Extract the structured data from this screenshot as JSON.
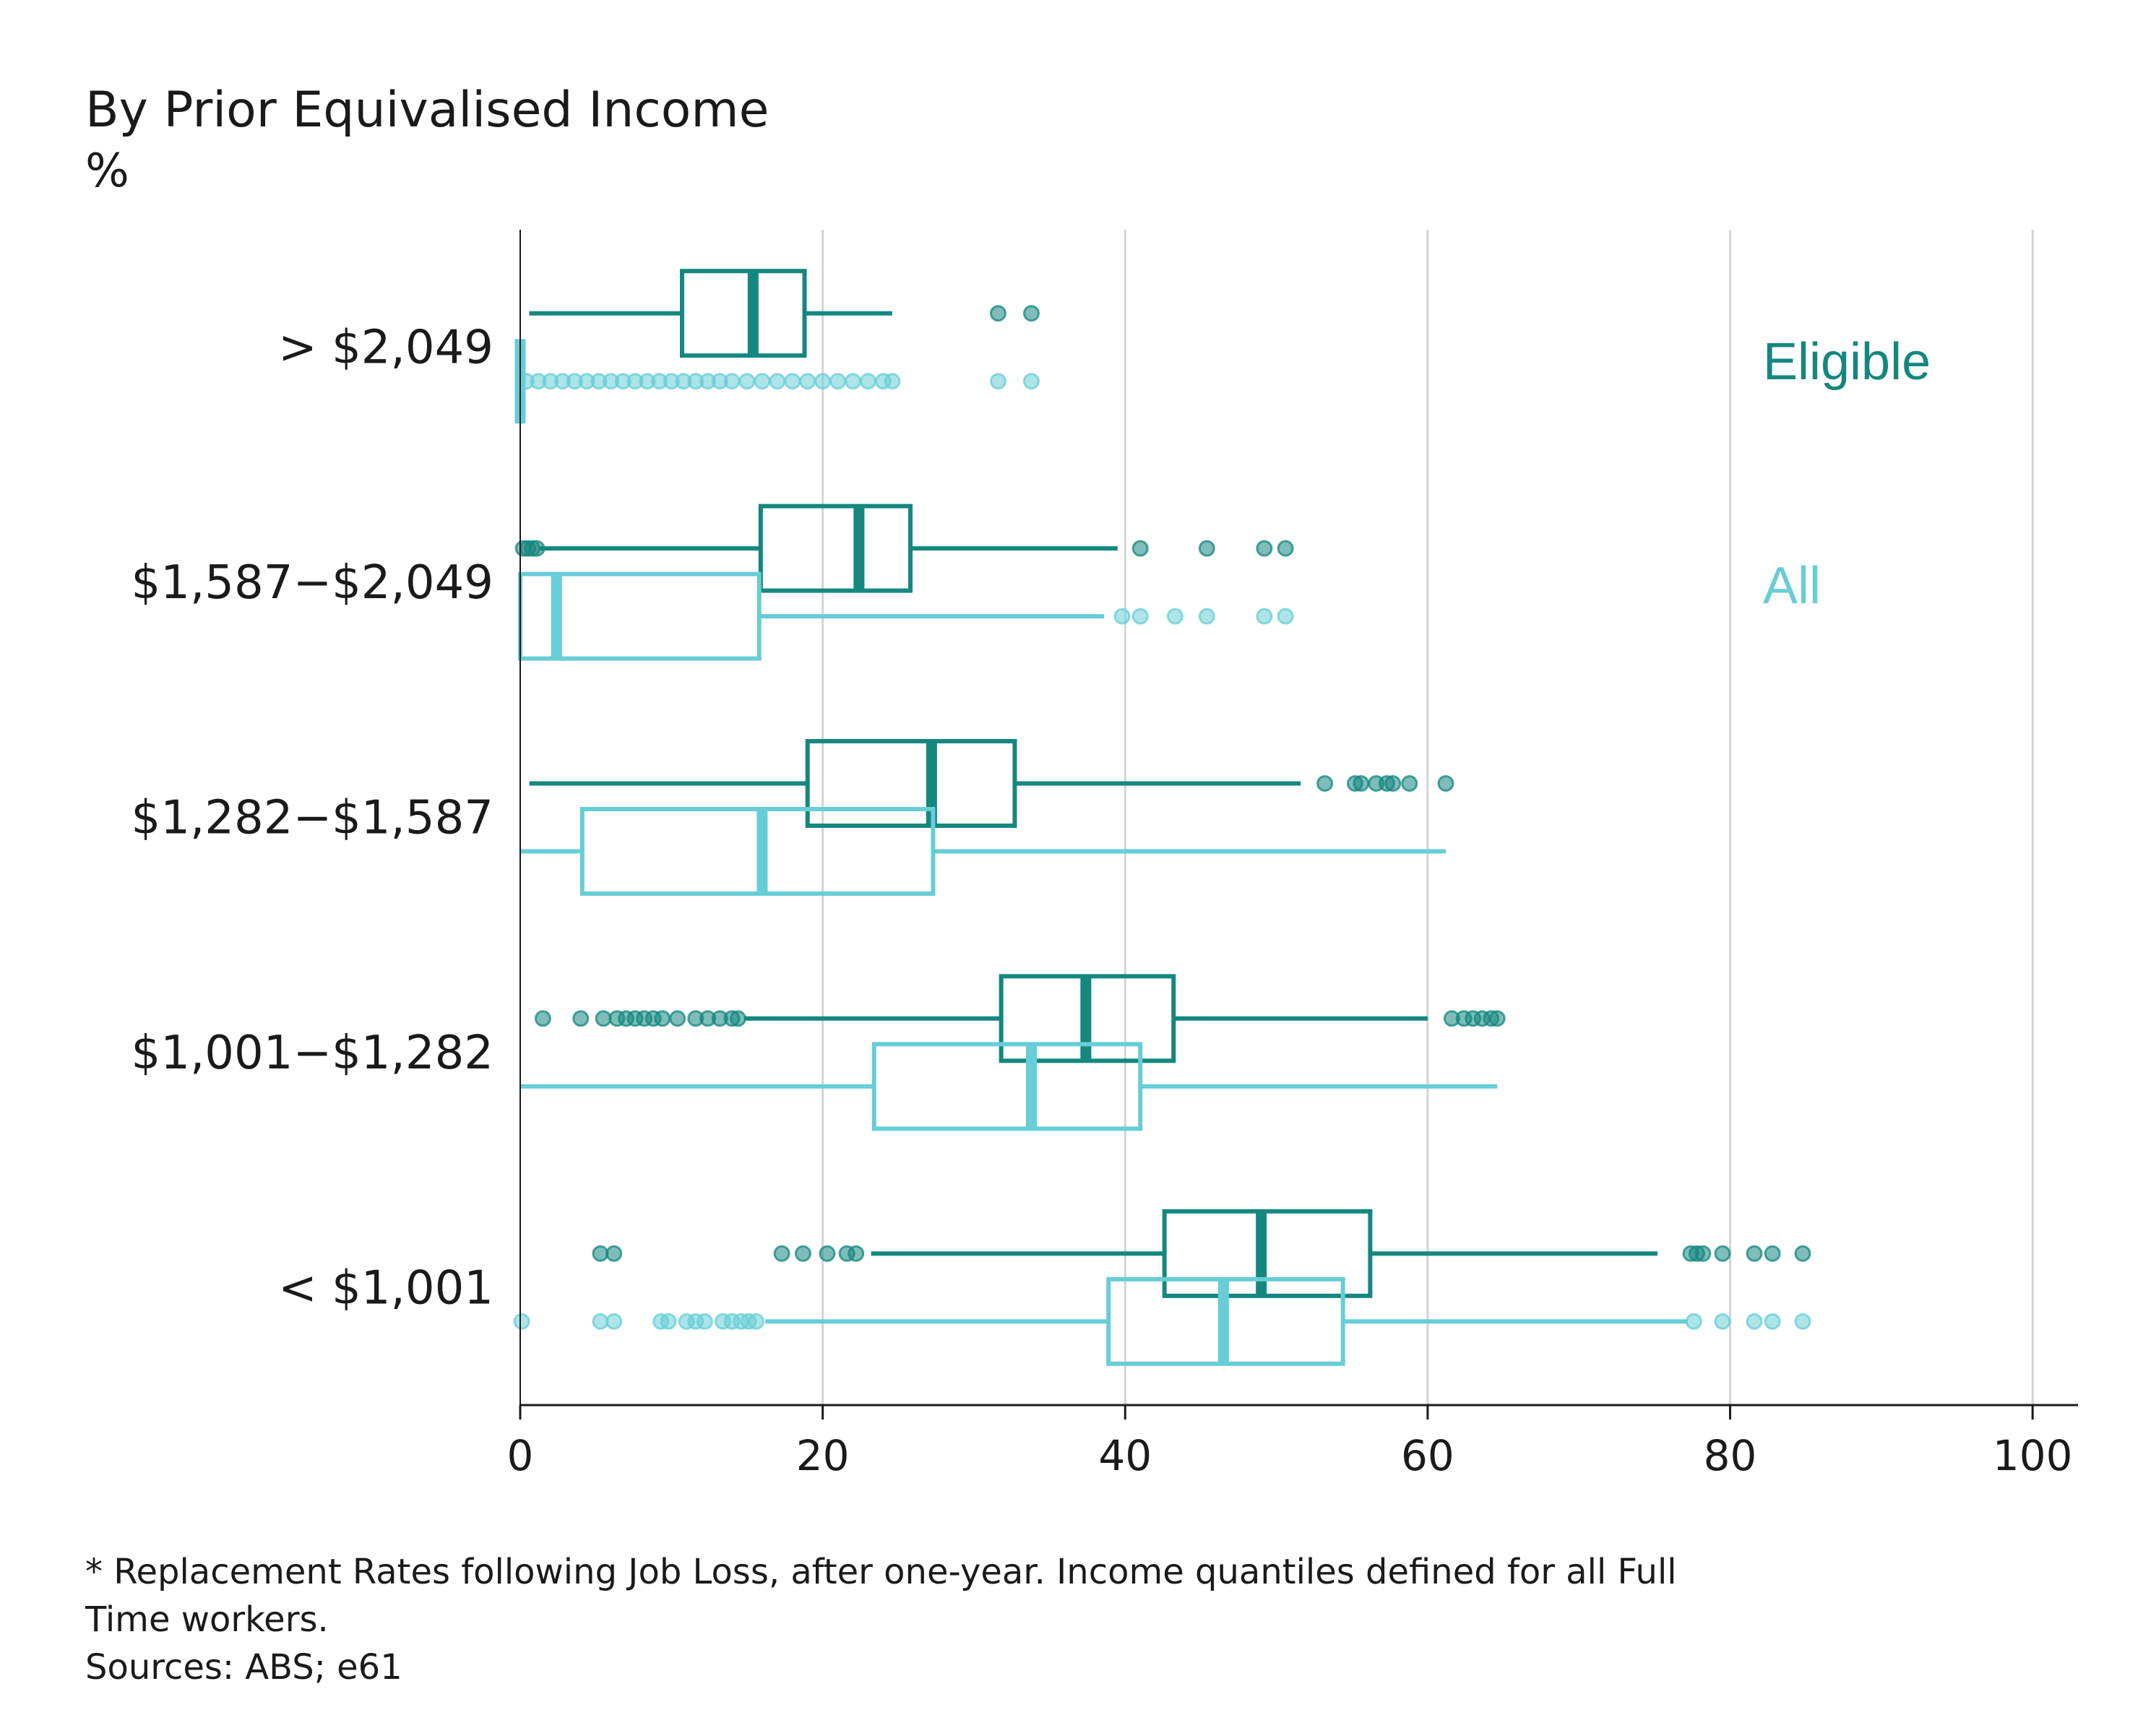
{
  "chart_data": {
    "type": "boxplot",
    "orientation": "horizontal",
    "title": "By Prior Equivalised Income",
    "subtitle": "%",
    "xlim": [
      0,
      103
    ],
    "xticks": [
      0,
      20,
      40,
      60,
      80,
      100
    ],
    "grid": "vertical",
    "legend": {
      "placement": "right",
      "entries": [
        {
          "label": "Eligible",
          "color": "#14877f"
        },
        {
          "label": "All",
          "color": "#67cdd6"
        }
      ]
    },
    "categories": [
      "> $2,049",
      "$1,587−$2,049",
      "$1,282−$1,587",
      "$1,001−$1,282",
      "< $1,001"
    ],
    "series": [
      {
        "name": "Eligible",
        "color": "#14877f",
        "boxes": [
          {
            "whisker_low": 0.6,
            "q1": 10.7,
            "median": 15.4,
            "q3": 18.8,
            "whisker_high": 24.6,
            "outliers": [
              31.6,
              33.8
            ]
          },
          {
            "whisker_low": 1.3,
            "q1": 15.9,
            "median": 22.4,
            "q3": 25.8,
            "whisker_high": 39.5,
            "outliers": [
              0.2,
              0.5,
              0.8,
              1.1,
              41.0,
              45.4,
              49.2,
              50.6
            ]
          },
          {
            "whisker_low": 0.6,
            "q1": 19.0,
            "median": 27.2,
            "q3": 32.7,
            "whisker_high": 51.6,
            "outliers": [
              53.2,
              55.2,
              55.6,
              56.6,
              57.3,
              57.7,
              58.8,
              61.2
            ]
          },
          {
            "whisker_low": 14.8,
            "q1": 31.8,
            "median": 37.4,
            "q3": 43.2,
            "whisker_high": 60.0,
            "outliers": [
              1.5,
              4.0,
              5.5,
              6.4,
              7.0,
              7.6,
              8.2,
              8.8,
              9.4,
              10.4,
              11.6,
              12.4,
              13.2,
              14.0,
              14.4,
              61.6,
              62.4,
              63.0,
              63.6,
              64.2,
              64.6
            ]
          },
          {
            "whisker_low": 23.2,
            "q1": 42.6,
            "median": 49.0,
            "q3": 56.2,
            "whisker_high": 75.2,
            "outliers": [
              5.3,
              6.2,
              17.3,
              18.7,
              20.3,
              21.6,
              22.2,
              77.4,
              77.8,
              78.2,
              79.5,
              81.6,
              82.8,
              84.8
            ]
          }
        ]
      },
      {
        "name": "All",
        "color": "#67cdd6",
        "boxes": [
          {
            "whisker_low": 0.0,
            "q1": 0.0,
            "median": 0.0,
            "q3": 0.0,
            "whisker_high": 0.0,
            "outliers": [
              0.4,
              1.2,
              2.0,
              2.8,
              3.6,
              4.4,
              5.2,
              6.0,
              6.8,
              7.6,
              8.4,
              9.2,
              10.0,
              10.8,
              11.6,
              12.4,
              13.2,
              14.0,
              15.0,
              16.0,
              17.0,
              18.0,
              19.0,
              20.0,
              21.0,
              22.0,
              23.0,
              24.0,
              24.6,
              31.6,
              33.8
            ]
          },
          {
            "whisker_low": 0.0,
            "q1": 0.0,
            "median": 2.4,
            "q3": 15.8,
            "whisker_high": 38.6,
            "outliers": [
              39.8,
              41.0,
              43.3,
              45.4,
              49.2,
              50.6
            ]
          },
          {
            "whisker_low": 0.0,
            "q1": 4.1,
            "median": 16.0,
            "q3": 27.3,
            "whisker_high": 61.2,
            "outliers": []
          },
          {
            "whisker_low": 0.0,
            "q1": 23.4,
            "median": 33.8,
            "q3": 41.0,
            "whisker_high": 64.6,
            "outliers": []
          },
          {
            "whisker_low": 16.2,
            "q1": 38.9,
            "median": 46.5,
            "q3": 54.4,
            "whisker_high": 77.2,
            "outliers": [
              0.1,
              5.3,
              6.2,
              9.3,
              9.8,
              11.0,
              11.6,
              12.2,
              13.4,
              14.0,
              14.6,
              15.1,
              15.6,
              77.6,
              79.5,
              81.6,
              82.8,
              84.8
            ]
          }
        ]
      }
    ]
  },
  "footnote": {
    "line1": "* Replacement Rates following Job Loss, after one-year. Income quantiles defined for all Full",
    "line2": "Time workers.",
    "sources": "Sources: ABS; e61"
  }
}
